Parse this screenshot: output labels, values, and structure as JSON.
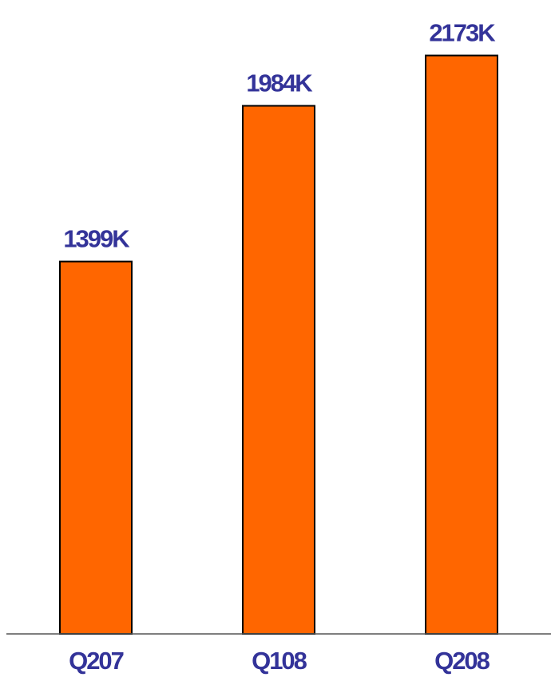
{
  "chart_data": {
    "type": "bar",
    "categories": [
      "Q207",
      "Q108",
      "Q208"
    ],
    "values": [
      1399,
      1984,
      2173
    ],
    "data_labels": [
      "1399K",
      "1984K",
      "2173K"
    ],
    "title": "",
    "xlabel": "",
    "ylabel": "",
    "ylim": [
      0,
      2500
    ],
    "grid": false,
    "legend": "none",
    "colors": {
      "bar_fill": "#ff6600",
      "bar_stroke": "#000000",
      "label_text": "#333399",
      "axis_line": "#555555"
    }
  }
}
